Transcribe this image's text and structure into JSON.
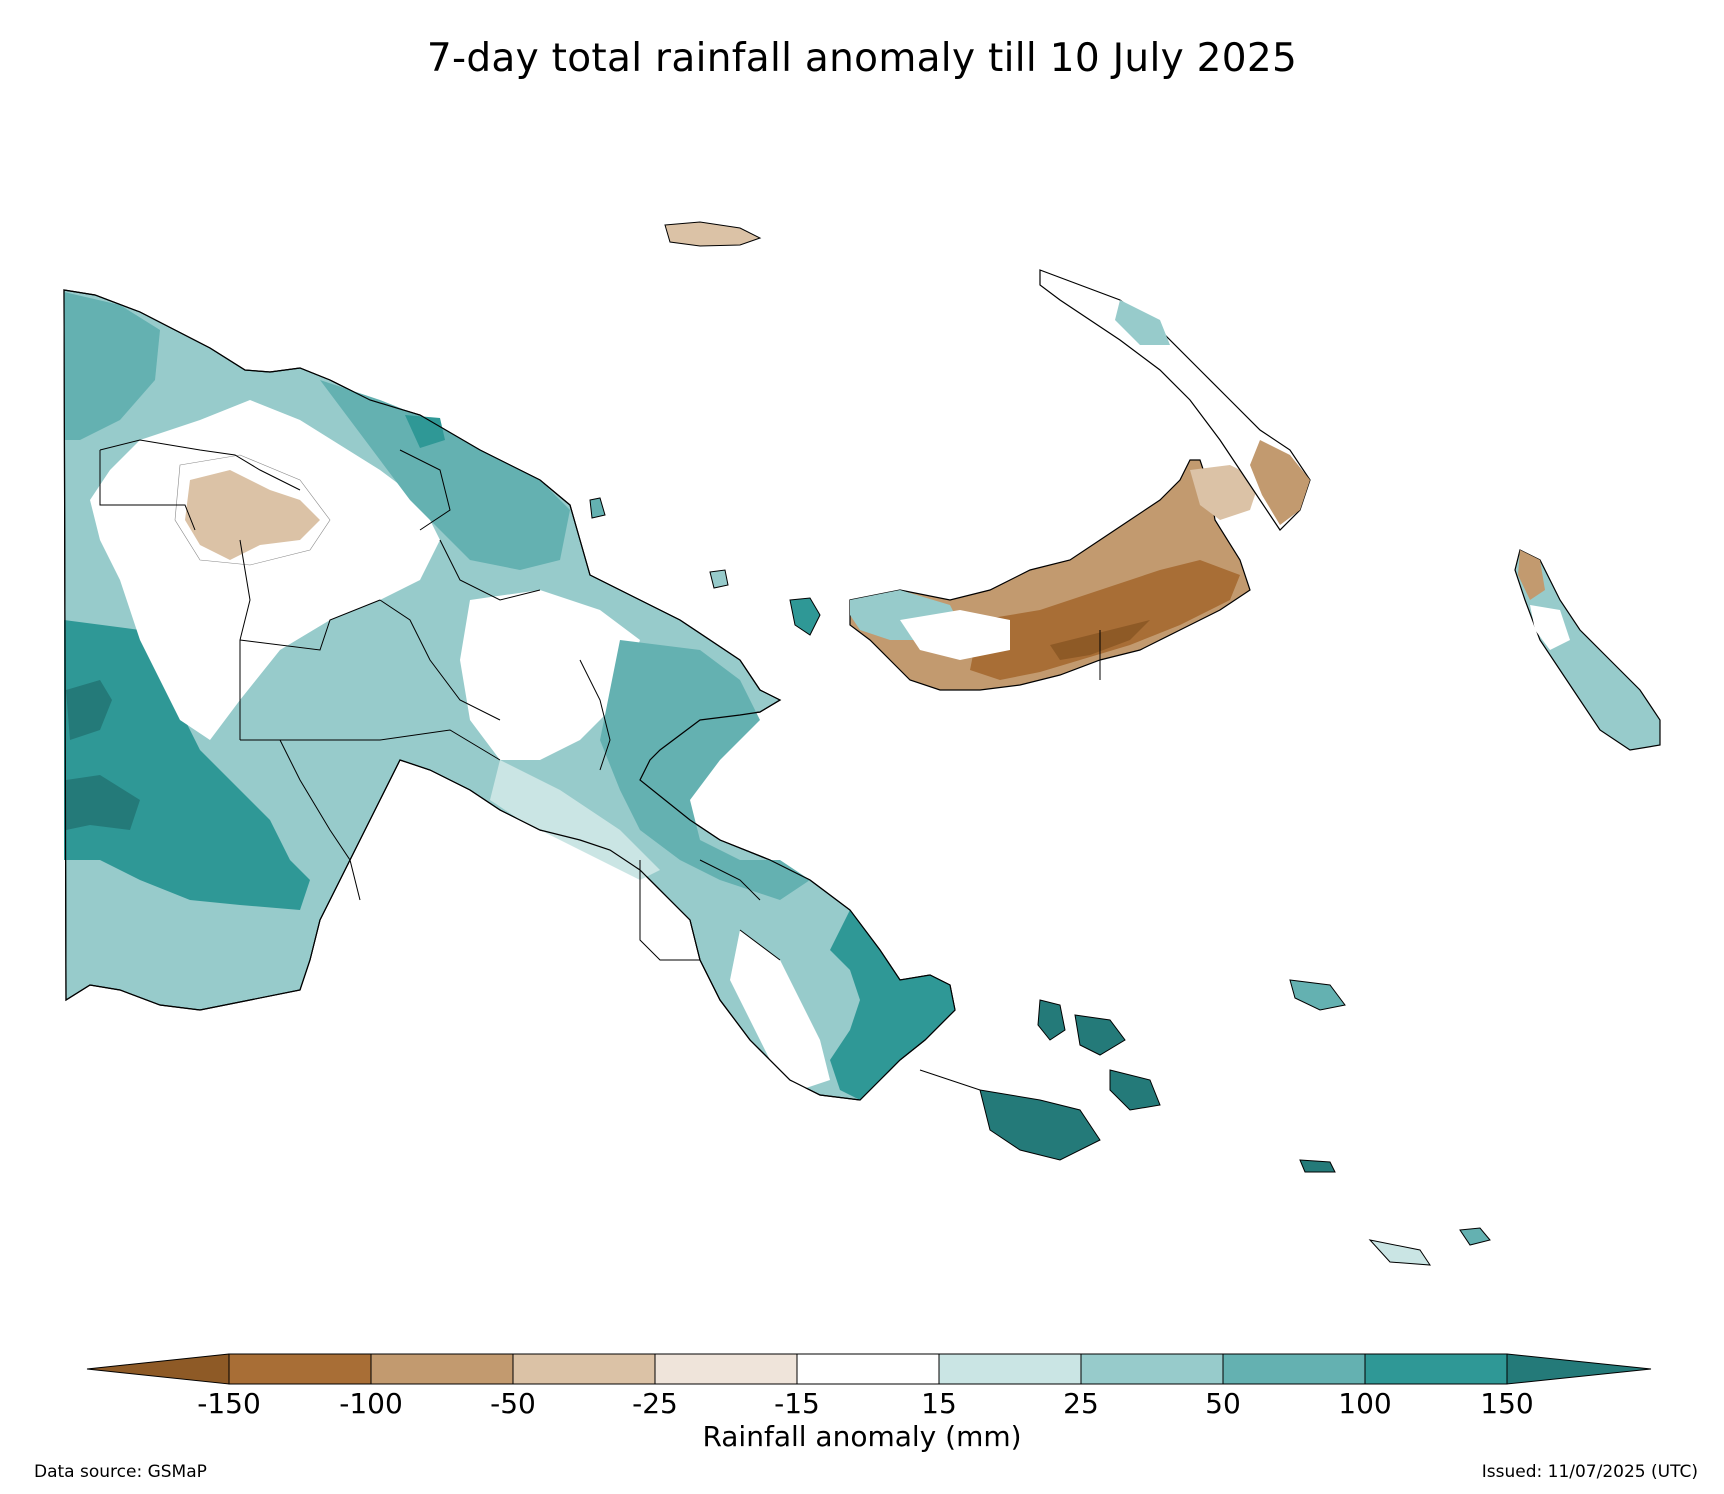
{
  "title": "7-day total rainfall anomaly till 10 July 2025",
  "colorbar": {
    "label": "Rainfall anomaly (mm)",
    "ticks": [
      "-150",
      "-100",
      "-50",
      "-25",
      "-15",
      "15",
      "25",
      "50",
      "100",
      "150"
    ],
    "levels": [
      -150,
      -100,
      -50,
      -25,
      -15,
      15,
      25,
      50,
      100,
      150
    ],
    "colors": {
      "under": "#8e5a26",
      "bins": [
        "#a86e36",
        "#c29a6f",
        "#dbc2a6",
        "#efe4da",
        "#ffffff",
        "#cae5e4",
        "#97cbcb",
        "#64b1b1",
        "#2f9896"
      ],
      "over": "#247a79"
    },
    "extend": "both"
  },
  "footer": {
    "source": "Data source: GSMaP",
    "issued": "Issued: 11/07/2025 (UTC)"
  },
  "map": {
    "region": "Papua New Guinea",
    "shading_legend": {
      "dry_strong": "#a86e36",
      "dry_moderate": "#c29a6f",
      "dry_light": "#dbc2a6",
      "near_normal_dry": "#efe4da",
      "normal": "#ffffff",
      "wet_light": "#cae5e4",
      "wet_moderate": "#97cbcb",
      "wet_high": "#64b1b1",
      "wet_very_high": "#2f9896",
      "wet_extreme": "#247a79"
    }
  }
}
